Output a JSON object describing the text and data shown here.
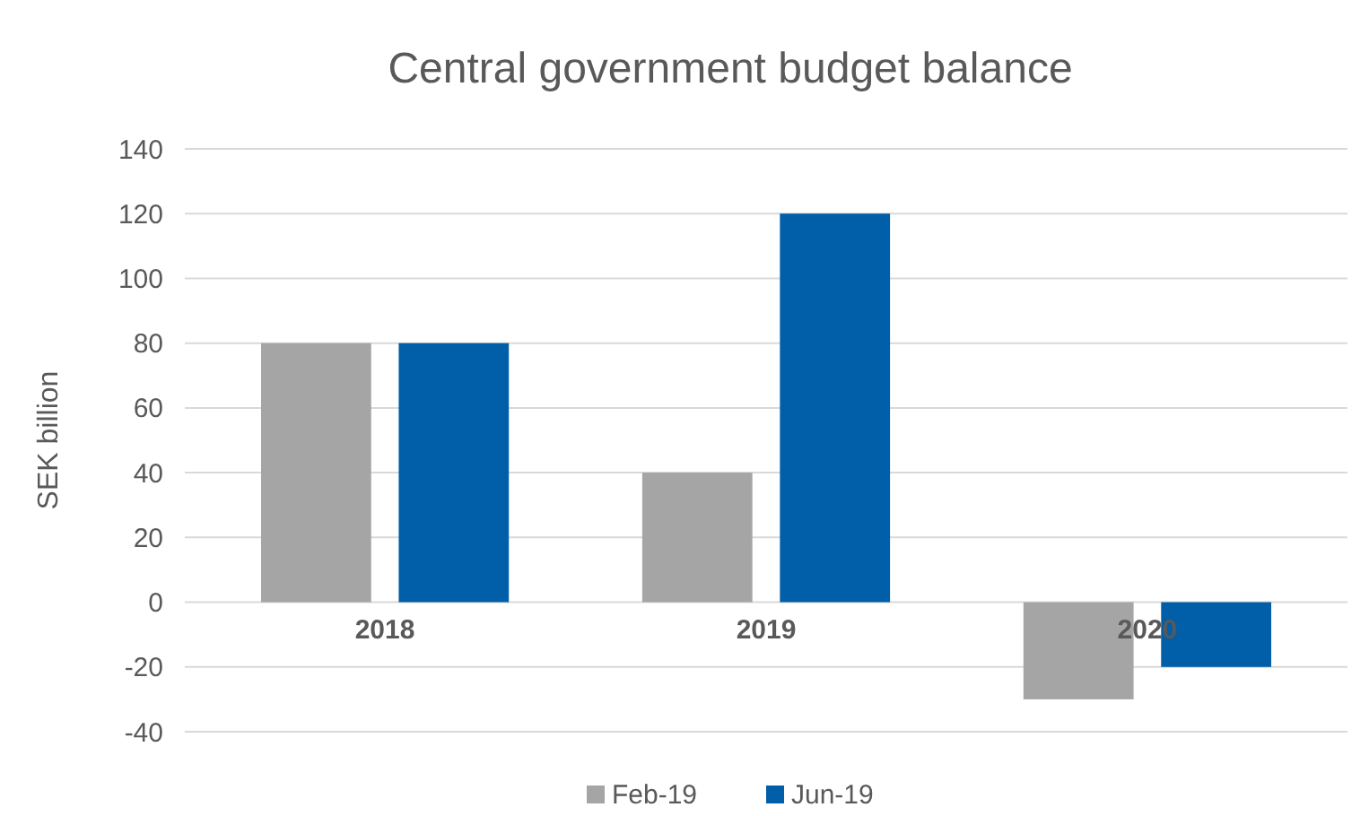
{
  "chart_data": {
    "type": "bar",
    "title": "Central government budget balance",
    "ylabel": "SEK billion",
    "categories": [
      "2018",
      "2019",
      "2020"
    ],
    "series": [
      {
        "name": "Feb-19",
        "color": "#a5a5a5",
        "values": [
          80,
          40,
          -30
        ]
      },
      {
        "name": "Jun-19",
        "color": "#005fa8",
        "values": [
          80,
          120,
          -20
        ]
      }
    ],
    "ylim": [
      -40,
      140
    ],
    "yticks": [
      -40,
      -20,
      0,
      20,
      40,
      60,
      80,
      100,
      120,
      140
    ],
    "grid": "y",
    "legend": "bottom"
  }
}
